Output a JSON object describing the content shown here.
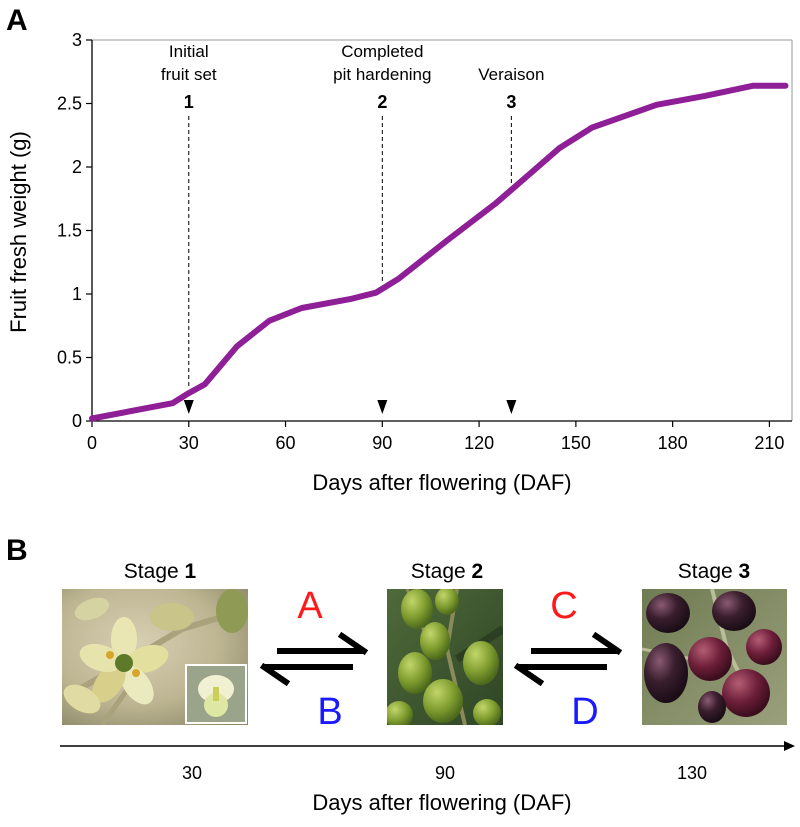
{
  "panel_a_label": "A",
  "panel_b_label": "B",
  "chart_data": {
    "type": "line",
    "title": "",
    "xlabel": "Days after flowering (DAF)",
    "ylabel": "Fruit fresh weight (g)",
    "xlim": [
      0,
      217
    ],
    "ylim": [
      0,
      3
    ],
    "xticks": [
      0,
      30,
      60,
      90,
      120,
      150,
      180,
      210
    ],
    "yticks": [
      0,
      0.5,
      1,
      1.5,
      2,
      2.5,
      3
    ],
    "ytick_labels": [
      "0",
      "0.5",
      "1",
      "1.5",
      "2",
      "2.5",
      "3"
    ],
    "grid": false,
    "series": [
      {
        "color": "#8e1f96",
        "x": [
          0,
          25,
          30,
          35,
          45,
          55,
          65,
          80,
          88,
          95,
          110,
          125,
          135,
          145,
          155,
          165,
          175,
          190,
          205,
          215
        ],
        "y": [
          0.02,
          0.14,
          0.22,
          0.29,
          0.59,
          0.79,
          0.89,
          0.96,
          1.01,
          1.12,
          1.42,
          1.71,
          1.93,
          2.15,
          2.31,
          2.4,
          2.49,
          2.56,
          2.64,
          2.64
        ]
      }
    ],
    "annotations": [
      {
        "x": 30,
        "lines": [
          "Initial",
          "fruit set"
        ],
        "number": "1"
      },
      {
        "x": 90,
        "lines": [
          "Completed",
          "pit hardening"
        ],
        "number": "2"
      },
      {
        "x": 130,
        "lines": [
          "Veraison"
        ],
        "number": "3"
      }
    ]
  },
  "panel_b": {
    "stages": [
      {
        "prefix": "Stage ",
        "number": "1",
        "day": "30"
      },
      {
        "prefix": "Stage ",
        "number": "2",
        "day": "90"
      },
      {
        "prefix": "Stage ",
        "number": "3",
        "day": "130"
      }
    ],
    "transitions": [
      {
        "forward": "A",
        "backward": "B",
        "forward_color": "#ff1a1a",
        "backward_color": "#1a1aff"
      },
      {
        "forward": "C",
        "backward": "D",
        "forward_color": "#ff1a1a",
        "backward_color": "#1a1aff"
      }
    ],
    "timeline_label": "Days after flowering (DAF)"
  }
}
